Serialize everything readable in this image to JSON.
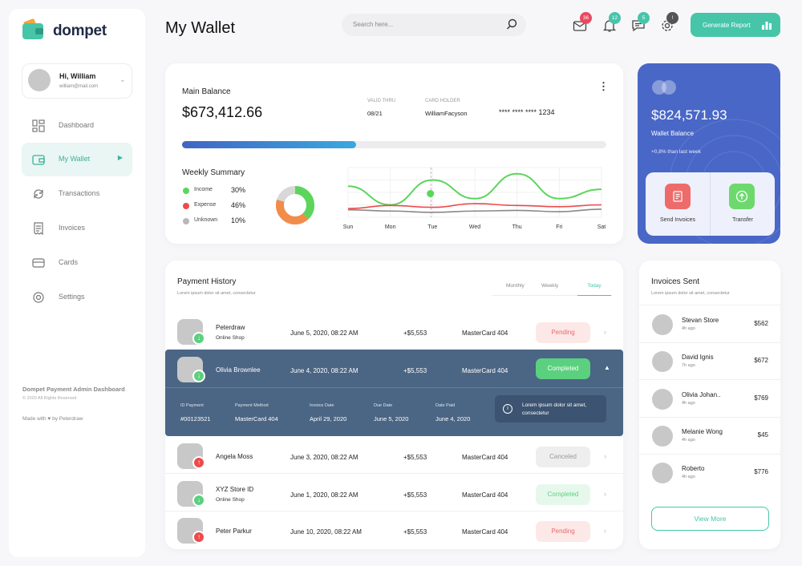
{
  "brand": {
    "name": "dompet"
  },
  "user": {
    "greeting": "Hi, William",
    "email": "william@mail.com"
  },
  "nav": [
    {
      "label": "Dashboard",
      "icon": "dashboard-icon"
    },
    {
      "label": "My Wallet",
      "icon": "wallet-icon",
      "active": true
    },
    {
      "label": "Transactions",
      "icon": "transactions-icon"
    },
    {
      "label": "Invoices",
      "icon": "invoices-icon"
    },
    {
      "label": "Cards",
      "icon": "cards-icon"
    },
    {
      "label": "Settings",
      "icon": "settings-icon"
    }
  ],
  "sidebar_footer": {
    "title": "Dompet Payment Admin Dashboard",
    "copyright": "© 2020 All Rights Reserved",
    "made_with": "Made with ♥ by Peterdraw"
  },
  "header": {
    "title": "My Wallet",
    "search_placeholder": "Search here...",
    "notifications": [
      {
        "icon": "mail-icon",
        "count": "36",
        "color": "#e84a5f"
      },
      {
        "icon": "bell-icon",
        "count": "12",
        "color": "#46c5a9"
      },
      {
        "icon": "chat-icon",
        "count": "5",
        "color": "#46c5a9"
      },
      {
        "icon": "gear-icon",
        "count": "!",
        "color": "#555555"
      }
    ],
    "generate_report": "Generate Report"
  },
  "balance": {
    "main_label": "Main Balance",
    "amount": "$673,412.66",
    "valid_thru_label": "VALID THRU",
    "valid_thru": "08/21",
    "card_holder_label": "CARD HOLDER",
    "card_holder": "WilliamFacyson",
    "card_number": "**** **** **** 1234",
    "progress": 0.41
  },
  "weekly_summary": {
    "title": "Weekly Summary",
    "items": [
      {
        "label": "Income",
        "value": "30%",
        "color": "#5bd55b"
      },
      {
        "label": "Expense",
        "value": "46%",
        "color": "#ec4c4c"
      },
      {
        "label": "Unknown",
        "value": "10%",
        "color": "#b8b8b8"
      }
    ]
  },
  "chart_data": {
    "type": "line",
    "x": [
      "Sun",
      "Mon",
      "Tue",
      "Wed",
      "Thu",
      "Fri",
      "Sat"
    ],
    "series": [
      {
        "color": "#5bd55b",
        "values": [
          5,
          2,
          6,
          3,
          7,
          3,
          4.5
        ]
      },
      {
        "color": "#ec4c4c",
        "values": [
          1.4,
          1.9,
          1.6,
          2.2,
          1.9,
          1.7,
          2.0
        ]
      },
      {
        "color": "#888888",
        "values": [
          1.2,
          1.0,
          0.8,
          1.0,
          1.1,
          0.9,
          1.3
        ]
      }
    ],
    "ylim": [
      0,
      8
    ],
    "grid": true
  },
  "wallet": {
    "amount": "$824,571.93",
    "label": "Wallet Balance",
    "change": "+0,8% than last week",
    "send_invoices": "Send Invoices",
    "transfer": "Transfer"
  },
  "payment_history": {
    "title": "Payment History",
    "subtitle": "Lorem ipsum dolor sit amet, consectetur",
    "tabs": [
      "Monthly",
      "Weekly",
      "Today"
    ],
    "rows": [
      {
        "name": "Peterdraw",
        "sub": "Online Shop",
        "date": "June 5, 2020, 08:22 AM",
        "amount": "+$5,553",
        "method": "MasterCard 404",
        "status": "Pending",
        "dir": "in"
      },
      {
        "name": "Olivia Brownlee",
        "sub": "",
        "date": "June 4, 2020, 08:22 AM",
        "amount": "+$5,553",
        "method": "MasterCard 404",
        "status": "Completed",
        "dir": "in"
      },
      {
        "name": "Angela Moss",
        "sub": "",
        "date": "June 3, 2020, 08:22 AM",
        "amount": "+$5,553",
        "method": "MasterCard 404",
        "status": "Canceled",
        "dir": "out"
      },
      {
        "name": "XYZ Store ID",
        "sub": "Online Shop",
        "date": "June 1, 2020, 08:22 AM",
        "amount": "+$5,553",
        "method": "MasterCard 404",
        "status": "Completed",
        "dir": "in"
      },
      {
        "name": "Peter Parkur",
        "sub": "",
        "date": "June 10, 2020, 08:22 AM",
        "amount": "+$5,553",
        "method": "MasterCard 404",
        "status": "Pending",
        "dir": "out"
      }
    ],
    "details": {
      "id_label": "ID Payment",
      "id": "#00123521",
      "method_label": "Payment Method",
      "method": "MasterCard 404",
      "invoice_label": "Invoice Date",
      "invoice": "April 29, 2020",
      "due_label": "Due Date",
      "due": "June 5, 2020",
      "paid_label": "Date Paid",
      "paid": "June 4, 2020",
      "note": "Lorem ipsum dolor sit amet, consectetur"
    }
  },
  "invoices_sent": {
    "title": "Invoices Sent",
    "subtitle": "Lorem ipsum dolor sit amet, consectetur",
    "items": [
      {
        "name": "Stevan Store",
        "time": "4h ago",
        "amount": "$562"
      },
      {
        "name": "David Ignis",
        "time": "7h ago",
        "amount": "$672"
      },
      {
        "name": "Olivia Johan..",
        "time": "4h ago",
        "amount": "$769"
      },
      {
        "name": "Melanie Wong",
        "time": "4h ago",
        "amount": "$45"
      },
      {
        "name": "Roberto",
        "time": "4h ago",
        "amount": "$776"
      }
    ],
    "view_more": "View More"
  }
}
